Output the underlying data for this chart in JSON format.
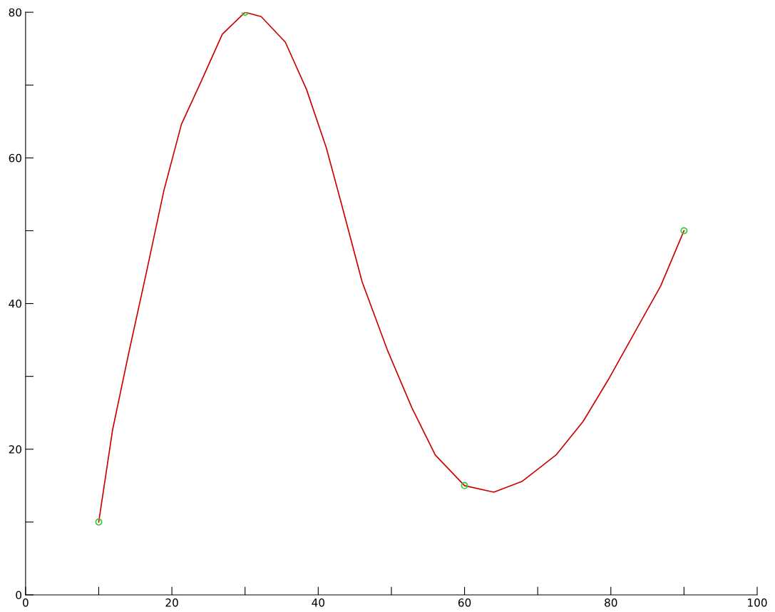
{
  "chart_data": {
    "type": "line",
    "xlim": [
      0,
      100
    ],
    "ylim": [
      0,
      80
    ],
    "xticks": [
      0,
      {
        "value": 10,
        "label": null
      },
      20,
      {
        "value": 30,
        "label": null
      },
      40,
      {
        "value": 50,
        "label": null
      },
      60,
      {
        "value": 70,
        "label": null
      },
      80,
      {
        "value": 90,
        "label": null
      },
      100
    ],
    "yticks": [
      0,
      {
        "value": 10,
        "label": null
      },
      20,
      {
        "value": 30,
        "label": null
      },
      40,
      {
        "value": 50,
        "label": null
      },
      60,
      {
        "value": 70,
        "label": null
      },
      80
    ],
    "grid": false,
    "legend": false,
    "series": [
      {
        "color": "#cc0000",
        "marker": "none",
        "x": [
          10,
          11.9,
          14.1,
          16.5,
          18.9,
          21.3,
          24,
          26.9,
          30,
          32.2,
          35.5,
          38.4,
          41.1,
          43.2,
          46,
          49.5,
          52.8,
          56,
          60,
          64,
          67.9,
          72.5,
          76.2,
          79.8,
          83.4,
          86.8,
          90
        ],
        "values": [
          10,
          22.7,
          33.2,
          44.2,
          55.5,
          64.6,
          70.5,
          77,
          80,
          79.4,
          75.9,
          69.4,
          61.4,
          53.6,
          43,
          33.5,
          25.7,
          19.2,
          15,
          14.1,
          15.6,
          19.2,
          23.8,
          29.8,
          36.3,
          42.4,
          50
        ]
      },
      {
        "type": "scatter",
        "color": "#33cc33",
        "marker": "circle",
        "x": [
          10,
          30,
          60,
          90
        ],
        "values": [
          10,
          80,
          15,
          50
        ]
      }
    ]
  }
}
